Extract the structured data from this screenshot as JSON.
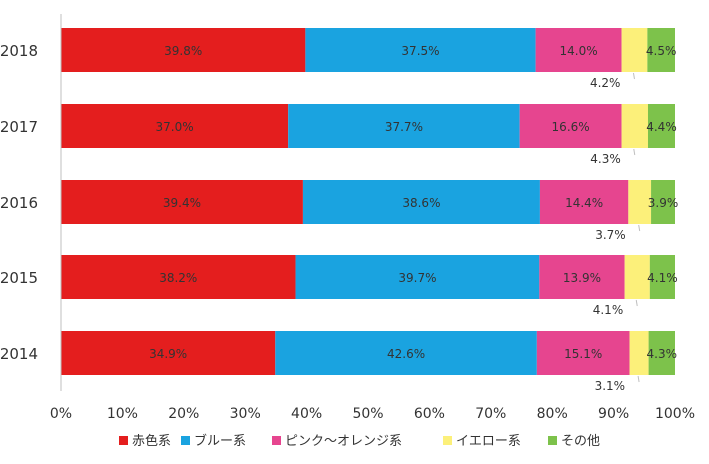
{
  "chart_data": {
    "type": "bar",
    "stacked": true,
    "percent_stacked": true,
    "orientation": "horizontal",
    "categories": [
      "2018",
      "2017",
      "2016",
      "2015",
      "2014"
    ],
    "series": [
      {
        "name": "赤色系",
        "color": "#e41e1e",
        "values": [
          39.8,
          37.0,
          39.4,
          38.2,
          34.9
        ],
        "labels": [
          "39.8%",
          "37.0%",
          "39.4%",
          "38.2%",
          "34.9%"
        ]
      },
      {
        "name": "ブルー系",
        "color": "#1aa3e0",
        "values": [
          37.5,
          37.7,
          38.6,
          39.7,
          42.6
        ],
        "labels": [
          "37.5%",
          "37.7%",
          "38.6%",
          "39.7%",
          "42.6%"
        ]
      },
      {
        "name": "ピンク～オレンジ系",
        "color": "#e6458f",
        "values": [
          14.0,
          16.6,
          14.4,
          13.9,
          15.1
        ],
        "labels": [
          "14.0%",
          "16.6%",
          "14.4%",
          "13.9%",
          "15.1%"
        ]
      },
      {
        "name": "イエロー系",
        "color": "#fcf07a",
        "values": [
          4.2,
          4.3,
          3.7,
          4.1,
          3.1
        ],
        "labels": [
          "4.2%",
          "4.3%",
          "3.7%",
          "4.1%",
          "3.1%"
        ]
      },
      {
        "name": "その他",
        "color": "#7dc24b",
        "values": [
          4.5,
          4.4,
          3.9,
          4.1,
          4.3
        ],
        "labels": [
          "4.5%",
          "4.4%",
          "3.9%",
          "4.1%",
          "4.3%"
        ]
      }
    ],
    "xlim": [
      0,
      100
    ],
    "x_ticks": [
      "0%",
      "10%",
      "20%",
      "30%",
      "40%",
      "50%",
      "60%",
      "70%",
      "80%",
      "90%",
      "100%"
    ],
    "legend_position": "bottom",
    "grid": false,
    "title": "",
    "xlabel": "",
    "ylabel": ""
  }
}
